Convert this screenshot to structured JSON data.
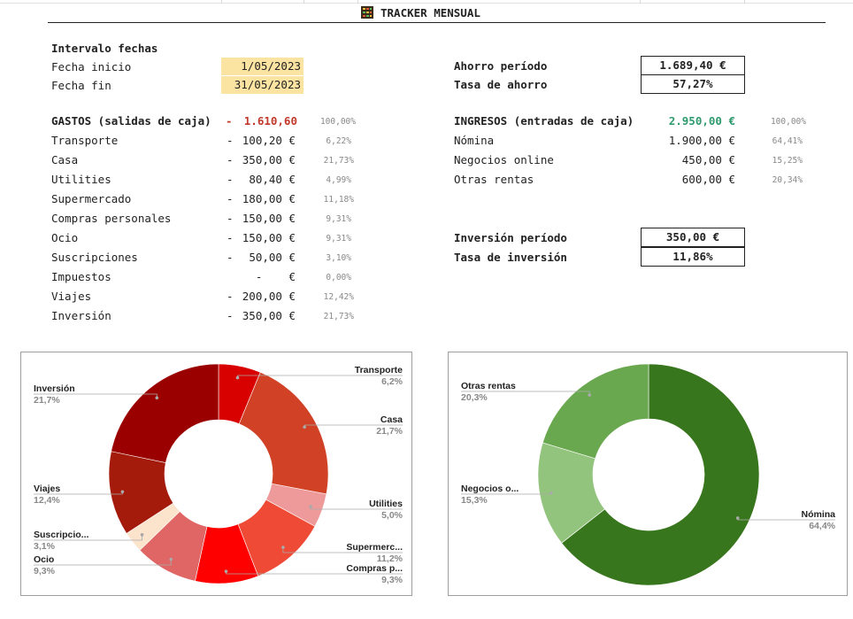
{
  "header": {
    "title": "TRACKER MENSUAL",
    "icon": "spreadsheet-icon"
  },
  "dates": {
    "section_label": "Intervalo fechas",
    "start_label": "Fecha inicio",
    "start_value": "1/05/2023",
    "end_label": "Fecha fin",
    "end_value": "31/05/2023"
  },
  "savings": {
    "label": "Ahorro período",
    "value": "1.689,40 €",
    "rate_label": "Tasa de ahorro",
    "rate_value": "57,27%"
  },
  "investment": {
    "label": "Inversión período",
    "value": "350,00 €",
    "rate_label": "Tasa de inversión",
    "rate_value": "11,86%"
  },
  "expenses": {
    "header_label": "GASTOS (salidas de caja)",
    "header_sign": "-",
    "header_total": "1.610,60",
    "header_pct": "100,00%",
    "rows": [
      {
        "label": "Transporte",
        "sign": "-",
        "amount": "100,20 €",
        "pct": "6,22%"
      },
      {
        "label": "Casa",
        "sign": "-",
        "amount": "350,00 €",
        "pct": "21,73%"
      },
      {
        "label": "Utilities",
        "sign": "-",
        "amount": "80,40 €",
        "pct": "4,99%"
      },
      {
        "label": "Supermercado",
        "sign": "-",
        "amount": "180,00 €",
        "pct": "11,18%"
      },
      {
        "label": "Compras personales",
        "sign": "-",
        "amount": "150,00 €",
        "pct": "9,31%"
      },
      {
        "label": "Ocio",
        "sign": "-",
        "amount": "150,00 €",
        "pct": "9,31%"
      },
      {
        "label": "Suscripciones",
        "sign": "-",
        "amount": "50,00 €",
        "pct": "3,10%"
      },
      {
        "label": "Impuestos",
        "sign": "",
        "amount": "-    €",
        "pct": "0,00%"
      },
      {
        "label": "Viajes",
        "sign": "-",
        "amount": "200,00 €",
        "pct": "12,42%"
      },
      {
        "label": "Inversión",
        "sign": "-",
        "amount": "350,00 €",
        "pct": "21,73%"
      }
    ]
  },
  "income": {
    "header_label": "INGRESOS (entradas de caja)",
    "header_total": "2.950,00 €",
    "header_pct": "100,00%",
    "rows": [
      {
        "label": "Nómina",
        "amount": "1.900,00 €",
        "pct": "64,41%"
      },
      {
        "label": "Negocios online",
        "amount": "450,00 €",
        "pct": "15,25%"
      },
      {
        "label": "Otras rentas",
        "amount": "600,00 €",
        "pct": "20,34%"
      }
    ]
  },
  "chart_data": [
    {
      "type": "pie",
      "title": "",
      "hole": true,
      "categories": [
        "Transporte",
        "Casa",
        "Utilities",
        "Supermercado",
        "Compras personales",
        "Ocio",
        "Suscripciones",
        "Viajes",
        "Inversión"
      ],
      "label_names": [
        "Transporte",
        "Casa",
        "Utilities",
        "Supermerc...",
        "Compras p...",
        "Ocio",
        "Suscripcio...",
        "Viajes",
        "Inversión"
      ],
      "label_pcts": [
        "6,2%",
        "21,7%",
        "5,0%",
        "11,2%",
        "9,3%",
        "9,3%",
        "3,1%",
        "12,4%",
        "21,7%"
      ],
      "values": [
        100.2,
        350.0,
        80.4,
        180.0,
        150.0,
        150.0,
        50.0,
        200.0,
        350.0
      ],
      "colors": [
        "#d90000",
        "#d14126",
        "#ef9a9a",
        "#ee4a36",
        "#ff0000",
        "#e06565",
        "#fbe3cc",
        "#a51b0b",
        "#9b0000"
      ]
    },
    {
      "type": "pie",
      "title": "",
      "hole": true,
      "categories": [
        "Nómina",
        "Negocios online",
        "Otras rentas"
      ],
      "label_names": [
        "Nómina",
        "Negocios o...",
        "Otras rentas"
      ],
      "label_pcts": [
        "64,4%",
        "15,3%",
        "20,3%"
      ],
      "values": [
        1900.0,
        450.0,
        600.0
      ],
      "colors": [
        "#38761d",
        "#93c47d",
        "#6aa84f"
      ]
    }
  ]
}
